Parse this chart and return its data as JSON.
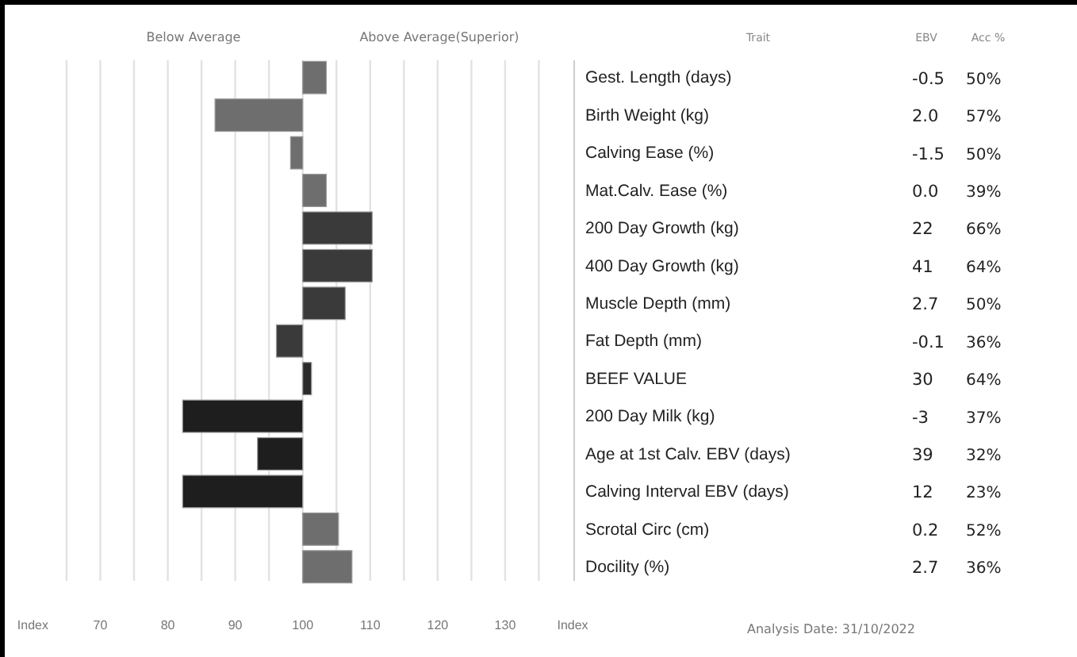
{
  "chart_data": {
    "type": "bar",
    "orientation": "horizontal",
    "categories": [
      "Gest. Length (days)",
      "Birth Weight (kg)",
      "Calving Ease (%)",
      "Mat.Calv. Ease (%)",
      "200 Day Growth (kg)",
      "400 Day Growth (kg)",
      "Muscle Depth (mm)",
      "Fat Depth (mm)",
      "BEEF VALUE",
      "200 Day Milk (kg)",
      "Age at 1st Calv. EBV (days)",
      "Calving Interval EBV (days)",
      "Scrotal Circ (cm)",
      "Docility (%)"
    ],
    "base": [
      100,
      100,
      100,
      100,
      100,
      100,
      100,
      100,
      100,
      100,
      100,
      100,
      100,
      100
    ],
    "values": [
      3.5,
      -13,
      -1.8,
      3.5,
      10.3,
      10.3,
      6.3,
      -3.9,
      1.3,
      -17.8,
      -6.7,
      -17.8,
      5.3,
      7.3
    ],
    "colors": [
      "#6e6e6e",
      "#6e6e6e",
      "#6e6e6e",
      "#6e6e6e",
      "#3a3a3a",
      "#3a3a3a",
      "#3a3a3a",
      "#3a3a3a",
      "#2a2a2a",
      "#1e1e1e",
      "#1e1e1e",
      "#1e1e1e",
      "#6e6e6e",
      "#6e6e6e"
    ],
    "xlim": [
      60,
      140
    ],
    "xticks": [
      {
        "value": 60,
        "label": "Index"
      },
      {
        "value": 65,
        "label": null
      },
      70,
      {
        "value": 75,
        "label": null
      },
      80,
      {
        "value": 85,
        "label": null
      },
      90,
      {
        "value": 95,
        "label": null
      },
      100,
      {
        "value": 105,
        "label": null
      },
      110,
      {
        "value": 115,
        "label": null
      },
      120,
      {
        "value": 125,
        "label": null
      },
      130,
      {
        "value": 135,
        "label": null
      },
      {
        "value": 140,
        "label": "Index"
      }
    ],
    "grid": "x",
    "annotations": [
      "Below Average",
      "Above Average(Superior)",
      "Trait",
      "EBV",
      "Acc %",
      "-0.5",
      "50%",
      "2.0",
      "57%",
      "-1.5",
      "50%",
      "0.0",
      "39%",
      "22",
      "66%",
      "41",
      "64%",
      "2.7",
      "50%",
      "-0.1",
      "36%",
      "30",
      "64%",
      "-3",
      "37%",
      "39",
      "32%",
      "12",
      "23%",
      "0.2",
      "52%",
      "2.7",
      "36%",
      "Analysis Date: 31/10/2022"
    ]
  }
}
